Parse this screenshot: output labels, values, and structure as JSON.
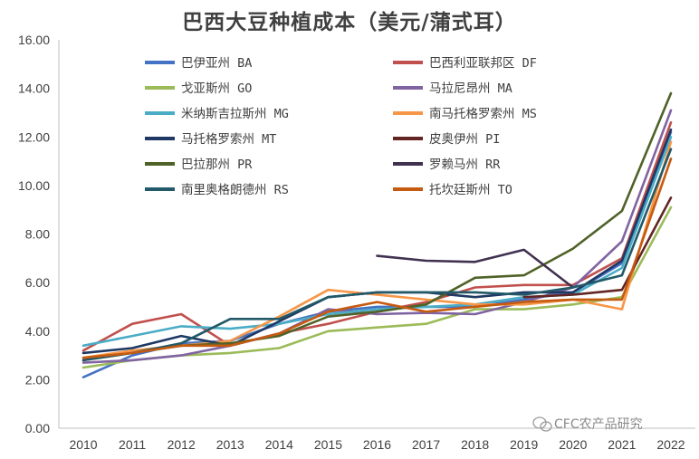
{
  "chart_data": {
    "type": "line",
    "title": "巴西大豆种植成本（美元/蒲式耳）",
    "x": [
      "2010",
      "2011",
      "2012",
      "2013",
      "2014",
      "2015",
      "2016",
      "2017",
      "2018",
      "2019",
      "2020",
      "2021",
      "2022"
    ],
    "ylim": [
      0,
      16
    ],
    "yticks": [
      "0.00",
      "2.00",
      "4.00",
      "6.00",
      "8.00",
      "10.00",
      "12.00",
      "14.00",
      "16.00"
    ],
    "grid": false,
    "legend_position": "top",
    "series": [
      {
        "name": "巴伊亚州 BA",
        "color": "#4472C4",
        "values": [
          2.1,
          3.0,
          3.5,
          3.6,
          4.3,
          4.8,
          5.0,
          5.0,
          5.0,
          5.3,
          5.6,
          6.8,
          12.2
        ]
      },
      {
        "name": "巴西利亚联邦区 DF",
        "color": "#C0504D",
        "values": [
          3.2,
          4.3,
          4.7,
          3.4,
          3.9,
          4.3,
          4.8,
          5.2,
          5.8,
          5.9,
          5.9,
          7.0,
          12.6
        ]
      },
      {
        "name": "戈亚斯州 GO",
        "color": "#9BBB59",
        "values": [
          2.5,
          2.8,
          3.0,
          3.1,
          3.3,
          4.0,
          4.15,
          4.3,
          4.9,
          4.9,
          5.1,
          5.4,
          9.1
        ]
      },
      {
        "name": "马拉尼昂州 MA",
        "color": "#8064A2",
        "values": [
          2.7,
          2.8,
          3.0,
          3.4,
          3.9,
          4.9,
          4.7,
          4.75,
          4.7,
          5.2,
          5.8,
          7.7,
          13.1
        ]
      },
      {
        "name": "米纳斯吉拉斯州 MG",
        "color": "#4BACC6",
        "values": [
          3.4,
          3.8,
          4.2,
          4.1,
          4.3,
          4.7,
          4.9,
          5.0,
          5.1,
          5.4,
          5.5,
          6.6,
          12.0
        ]
      },
      {
        "name": "南马托格罗索州 MS",
        "color": "#F79646",
        "values": [
          2.9,
          3.2,
          3.4,
          3.6,
          4.6,
          5.7,
          5.5,
          5.3,
          5.1,
          5.1,
          5.3,
          4.9,
          11.8
        ]
      },
      {
        "name": "马托格罗索州 MT",
        "color": "#1F3864",
        "values": [
          3.1,
          3.3,
          3.8,
          3.4,
          4.4,
          5.4,
          5.6,
          5.6,
          5.4,
          5.6,
          5.6,
          6.9,
          12.3
        ]
      },
      {
        "name": "皮奥伊州 PI",
        "color": "#632523",
        "values": [
          null,
          null,
          null,
          null,
          null,
          null,
          null,
          null,
          null,
          5.4,
          5.5,
          5.7,
          9.5
        ]
      },
      {
        "name": "巴拉那州 PR",
        "color": "#4F6228",
        "values": [
          2.8,
          3.1,
          3.4,
          3.5,
          3.8,
          4.6,
          4.8,
          5.1,
          6.2,
          6.3,
          7.4,
          8.95,
          13.8
        ]
      },
      {
        "name": "罗赖马州 RR",
        "color": "#403151",
        "values": [
          null,
          null,
          null,
          null,
          null,
          null,
          7.1,
          6.9,
          6.85,
          7.35,
          5.8,
          null,
          null
        ]
      },
      {
        "name": "南里奥格朗德州 RS",
        "color": "#215968",
        "values": [
          2.8,
          3.1,
          3.5,
          4.5,
          4.5,
          5.4,
          5.6,
          5.6,
          5.6,
          5.5,
          5.8,
          6.3,
          11.5
        ]
      },
      {
        "name": "托坎廷斯州 TO",
        "color": "#C55A11",
        "values": [
          2.9,
          3.1,
          3.4,
          3.4,
          3.9,
          4.8,
          5.2,
          4.8,
          5.0,
          5.2,
          5.3,
          5.3,
          11.1
        ]
      }
    ]
  },
  "watermark": "CFC农产品研究",
  "watermark_icon": "wechat-icon"
}
